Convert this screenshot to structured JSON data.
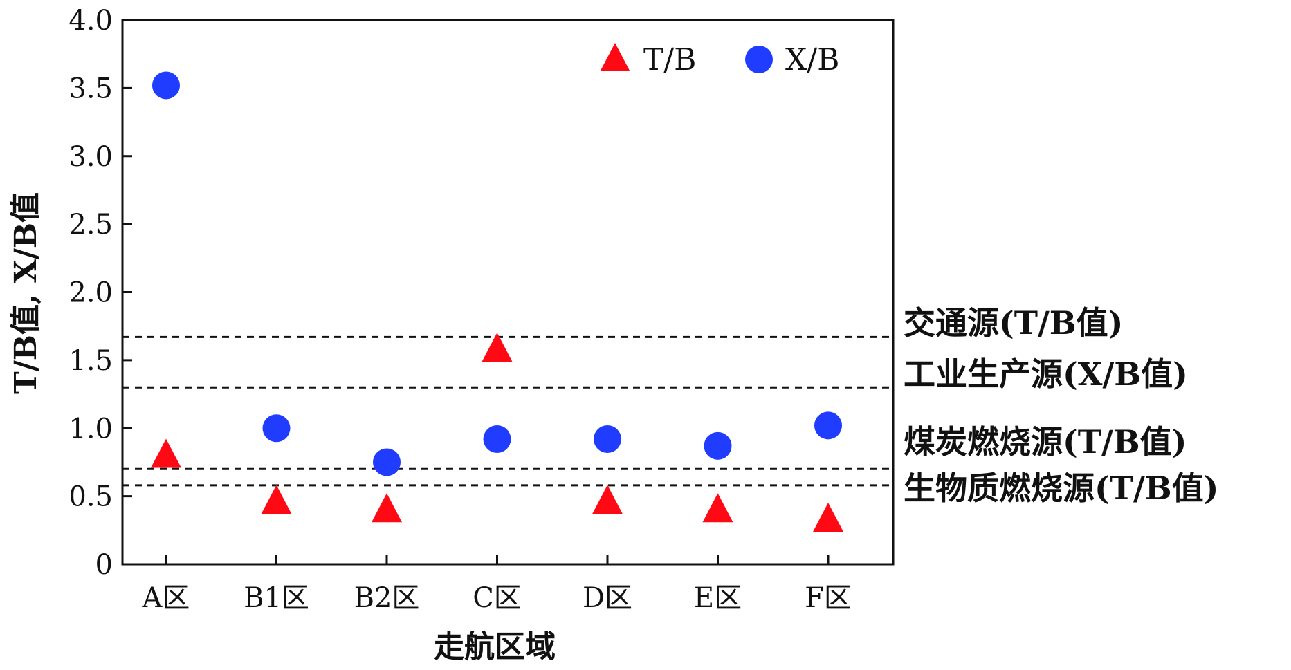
{
  "chart_data": {
    "type": "scatter",
    "title": "",
    "xlabel": "走航区域",
    "ylabel": "T/B值, X/B值",
    "categories": [
      "A区",
      "B1区",
      "B2区",
      "C区",
      "D区",
      "E区",
      "F区"
    ],
    "ylim": [
      0,
      4.0
    ],
    "yticks": [
      "0",
      "0.5",
      "1.0",
      "1.5",
      "2.0",
      "2.5",
      "3.0",
      "3.5",
      "4.0"
    ],
    "grid": false,
    "legend_position": "top-right",
    "series": [
      {
        "name": "T/B",
        "marker": "triangle",
        "color": "#ff0a14",
        "values": [
          0.79,
          0.45,
          0.39,
          1.57,
          0.45,
          0.39,
          0.32
        ]
      },
      {
        "name": "X/B",
        "marker": "circle",
        "color": "#1f3cff",
        "values": [
          3.52,
          1.0,
          0.75,
          0.92,
          0.92,
          0.87,
          1.02
        ]
      }
    ],
    "reference_lines": [
      {
        "value": 1.67,
        "label": "交通源(T/B值)",
        "style": "dashed"
      },
      {
        "value": 1.3,
        "label": "工业生产源(X/B值)",
        "style": "dashed"
      },
      {
        "value": 0.7,
        "label": "煤炭燃烧源(T/B值)",
        "style": "dashed"
      },
      {
        "value": 0.58,
        "label": "生物质燃烧源(T/B值)",
        "style": "dashed"
      }
    ]
  }
}
